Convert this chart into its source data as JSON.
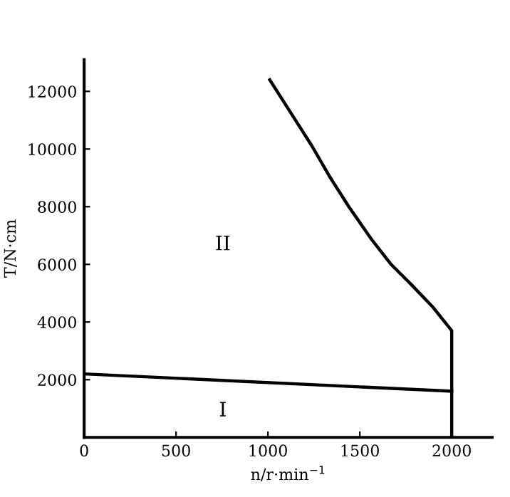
{
  "chart_data": {
    "type": "line",
    "xlabel": "n/r·min$^{−1}$",
    "ylabel": "T/N·cm",
    "xlim": [
      0,
      2220
    ],
    "ylim": [
      0,
      13100
    ],
    "xticks": [
      0,
      500,
      1000,
      1500,
      2000
    ],
    "yticks": [
      2000,
      4000,
      6000,
      8000,
      10000,
      12000
    ],
    "series": [
      {
        "color": "#000000",
        "x": [
          1010,
          1120,
          1240,
          1340,
          1440,
          1560,
          1670,
          1780,
          1900,
          2000,
          2000
        ],
        "values": [
          12400,
          11300,
          10100,
          9000,
          8000,
          6900,
          6000,
          5300,
          4500,
          3700,
          0
        ]
      },
      {
        "color": "#000000",
        "x": [
          0,
          2000
        ],
        "values": [
          2200,
          1600
        ]
      }
    ],
    "annotations": [
      "II",
      "I"
    ],
    "grid": false,
    "legend": false,
    "marker": "none",
    "line_style": "solid"
  }
}
